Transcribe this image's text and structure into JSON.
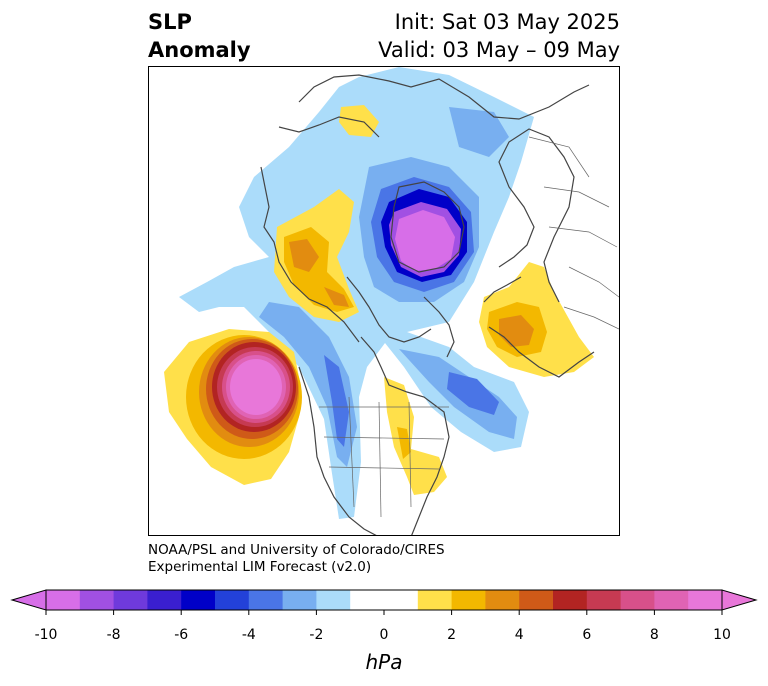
{
  "title": {
    "left_line1": "SLP",
    "left_line2": "Anomaly",
    "right_line1": "Init: Sat 03 May 2025",
    "right_line2": "Valid: 03 May – 09 May"
  },
  "credit": {
    "line1": "NOAA/PSL and University of Colorado/CIRES",
    "line2": "Experimental LIM Forecast (v2.0)"
  },
  "colorbar": {
    "units": "hPa",
    "colors": [
      "#d76ee8",
      "#a150e3",
      "#6f3adc",
      "#3a1fd0",
      "#0000c8",
      "#2341d9",
      "#4a75e6",
      "#78aff0",
      "#abdcfa",
      "#ffffff",
      "#ffffff",
      "#ffe04a",
      "#f3b800",
      "#e28c10",
      "#cf5a18",
      "#b22422",
      "#c63a52",
      "#d8508a",
      "#e063b4",
      "#e877d9"
    ],
    "tick_labels": [
      "-10",
      "-8",
      "-6",
      "-4",
      "-2",
      "0",
      "2",
      "4",
      "6",
      "8",
      "10"
    ]
  },
  "map": {
    "projection": "north-polar-stereographic",
    "field": "sea-level-pressure-anomaly",
    "features": [
      "strong-low-over-arctic-ocean",
      "strong-high-northeast-pacific",
      "weak-high-eastern-siberia",
      "weak-high-northern-europe",
      "weak-low-western-north-america",
      "weak-low-north-atlantic"
    ]
  }
}
